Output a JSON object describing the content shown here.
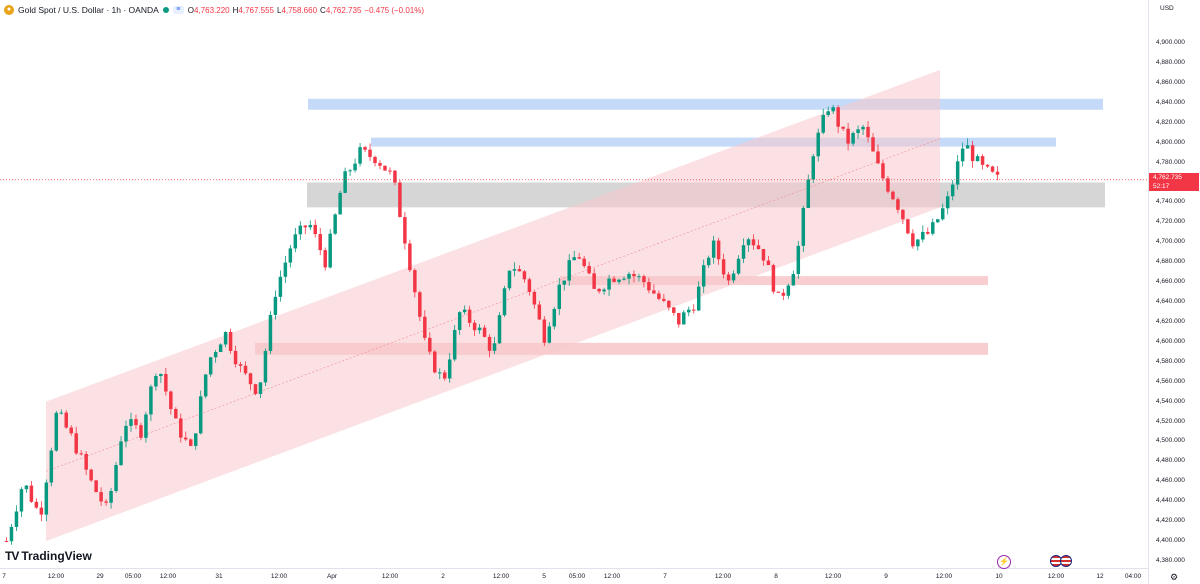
{
  "legend": {
    "symbol_icon": "gold-coin-icon",
    "title": "Gold Spot / U.S. Dollar · 1h · OANDA",
    "open_key": "O",
    "open": "4,763.220",
    "high_key": "H",
    "high": "4,767.555",
    "low_key": "L",
    "low": "4,758.660",
    "close_key": "C",
    "close": "4,762.735",
    "change": "−0.475 (−0.01%)"
  },
  "price_axis": {
    "currency": "USD",
    "labels": [
      "4,900.000",
      "4,880.000",
      "4,860.000",
      "4,840.000",
      "4,820.000",
      "4,800.000",
      "4,780.000",
      "4,760.000",
      "4,740.000",
      "4,720.000",
      "4,700.000",
      "4,680.000",
      "4,660.000",
      "4,640.000",
      "4,620.000",
      "4,600.000",
      "4,580.000",
      "4,560.000",
      "4,540.000",
      "4,520.000",
      "4,500.000",
      "4,480.000",
      "4,460.000",
      "4,440.000",
      "4,420.000",
      "4,400.000",
      "4,380.000"
    ]
  },
  "current_price": {
    "value": "4,762.735",
    "countdown": "52:17"
  },
  "time_axis": {
    "labels": [
      "7",
      "12:00",
      "29",
      "05:00",
      "12:00",
      "31",
      "12:00",
      "Apr",
      "12:00",
      "2",
      "12:00",
      "5",
      "05:00",
      "12:00",
      "7",
      "12:00",
      "8",
      "12:00",
      "9",
      "12:00",
      "10",
      "12:00",
      "12",
      "04:00"
    ]
  },
  "branding": {
    "logo_text": "TradingView",
    "logo_mark": "TV"
  },
  "icons": {
    "bolt": "lightning-icon",
    "flag": "us-flag-icon",
    "settings": "gear-icon"
  },
  "colors": {
    "up": "#089981",
    "down": "#f23645",
    "channel": "#f7c9cc",
    "blue_zone": "#bbd3f7",
    "gray_zone": "#cfcfcf",
    "red_zone": "#f8c6c9"
  },
  "chart_data": {
    "type": "candlestick",
    "title": "Gold Spot / U.S. Dollar · 1h · OANDA",
    "ylim": [
      4380,
      4910
    ],
    "y_unit": "USD",
    "last_price": 4762.735,
    "zones": [
      {
        "kind": "resistance",
        "color": "blue",
        "low": 4833,
        "high": 4844
      },
      {
        "kind": "resistance",
        "color": "blue",
        "low": 4796,
        "high": 4805
      },
      {
        "kind": "pivot",
        "color": "gray",
        "low": 4735,
        "high": 4760
      },
      {
        "kind": "support",
        "color": "red",
        "low": 4657,
        "high": 4666
      },
      {
        "kind": "support",
        "color": "red",
        "low": 4587,
        "high": 4599
      }
    ],
    "channel": {
      "upper_start": 4540,
      "upper_end": 4873,
      "lower_start": 4400,
      "lower_end": 4735,
      "span_ticks": [
        "29 (approx.)",
        "9 12:00"
      ]
    },
    "ohlc_last": {
      "open": 4763.22,
      "high": 4767.555,
      "low": 4758.66,
      "close": 4762.735
    },
    "path": [
      4400,
      4460,
      4425,
      4530,
      4500,
      4460,
      4430,
      4520,
      4510,
      4580,
      4520,
      4490,
      4580,
      4610,
      4570,
      4550,
      4650,
      4700,
      4720,
      4680,
      4760,
      4790,
      4785,
      4765,
      4680,
      4590,
      4560,
      4630,
      4615,
      4590,
      4680,
      4660,
      4605,
      4660,
      4690,
      4650,
      4665,
      4670,
      4660,
      4640,
      4620,
      4640,
      4700,
      4660,
      4710,
      4690,
      4640,
      4680,
      4790,
      4840,
      4800,
      4815,
      4770,
      4740,
      4700,
      4710,
      4740,
      4800,
      4775,
      4763
    ]
  }
}
